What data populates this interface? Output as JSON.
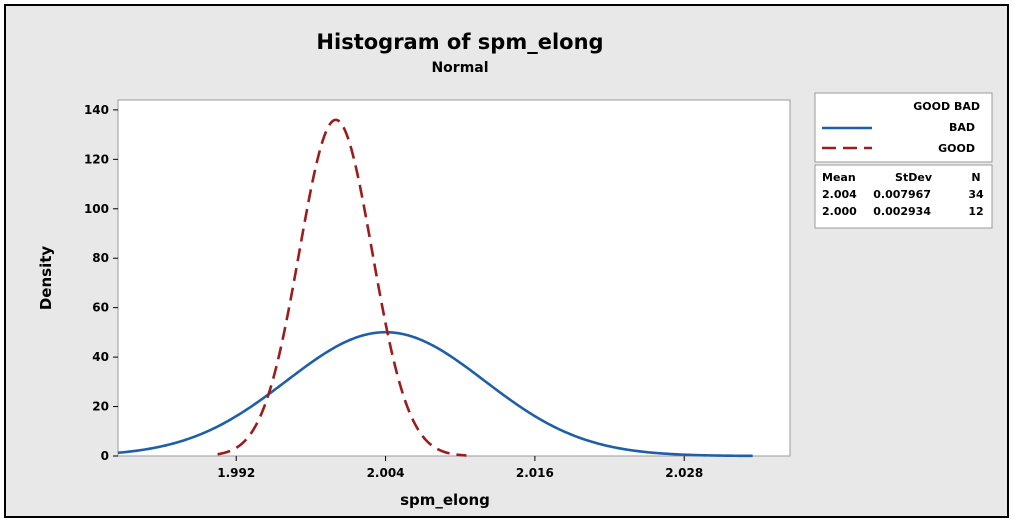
{
  "chart_data": {
    "type": "line",
    "title": "Histogram of spm_elong",
    "subtitle": "Normal",
    "xlabel": "spm_elong",
    "ylabel": "Density",
    "xlim": [
      1.9825,
      2.0365
    ],
    "ylim": [
      0,
      144
    ],
    "x_ticks": [
      1.992,
      2.004,
      2.016,
      2.028
    ],
    "x_tick_labels": [
      "1.992",
      "2.004",
      "2.016",
      "2.028"
    ],
    "y_ticks": [
      0,
      20,
      40,
      60,
      80,
      100,
      120,
      140
    ],
    "y_tick_labels": [
      "0",
      "20",
      "40",
      "60",
      "80",
      "100",
      "120",
      "140"
    ],
    "legend": {
      "position": "right",
      "title": "GOOD BAD",
      "entries": [
        {
          "label": "BAD",
          "color": "#1f5fa8",
          "style": "solid"
        },
        {
          "label": "GOOD",
          "color": "#9b1c1c",
          "style": "dashed"
        }
      ]
    },
    "stats": {
      "headers": [
        "Mean",
        "StDev",
        "N"
      ],
      "rows": [
        [
          "2.004",
          "0.007967",
          "34"
        ],
        [
          "2.000",
          "0.002934",
          "12"
        ]
      ]
    },
    "series": [
      {
        "name": "BAD",
        "mean": 2.004,
        "stdev": 0.007967,
        "n": 34,
        "color": "#1f5fa8",
        "style": "solid",
        "x_range": [
          1.9825,
          2.0335
        ]
      },
      {
        "name": "GOOD",
        "mean": 2.0,
        "stdev": 0.002934,
        "n": 12,
        "color": "#9b1c1c",
        "style": "dashed",
        "x_range": [
          1.9905,
          2.0105
        ]
      }
    ]
  }
}
